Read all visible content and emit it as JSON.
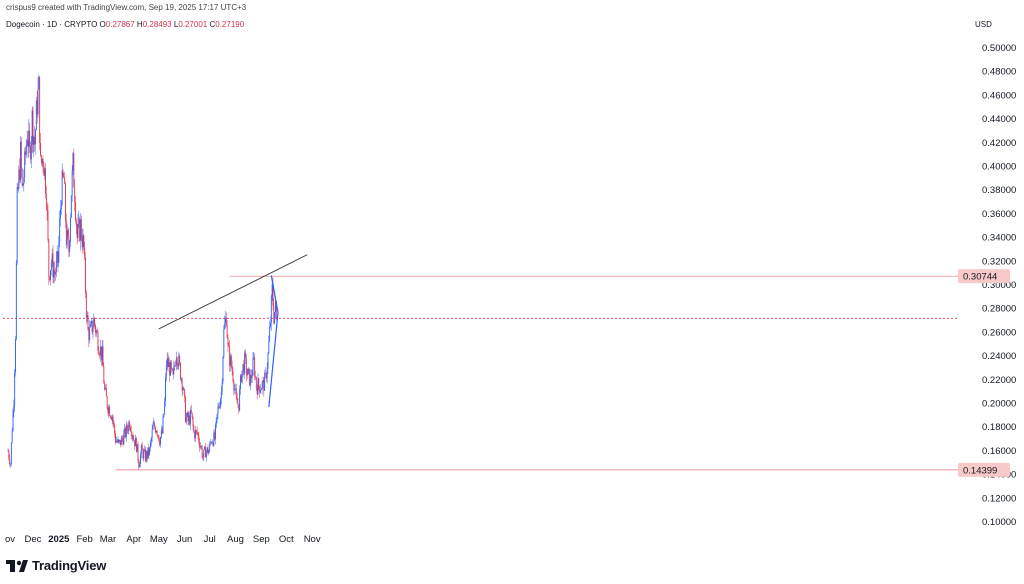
{
  "header": {
    "credit": "crispus9 created with TradingView.com, Sep 19, 2025 17:17 UTC+3",
    "symbol": "Dogecoin · 1D · CRYPTO",
    "ohlc": {
      "open_label": "O",
      "open": "0.27867",
      "high_label": "H",
      "high": "0.28493",
      "low_label": "L",
      "low": "0.27001",
      "close_label": "C",
      "close": "0.27190"
    }
  },
  "currency": "USD",
  "logo": {
    "text": "TradingView",
    "icon": "tradingview-logo-icon"
  },
  "colors": {
    "up": "#2962ff",
    "down": "#e0354b",
    "trendline": "#2b2b2b",
    "triangle": "#2962ff",
    "price_line": "#e0354b",
    "badge": "#f8c9c9"
  },
  "chart_data": {
    "type": "candlestick",
    "title": "Dogecoin · 1D · CRYPTO",
    "ylabel": "USD",
    "ylim": [
      0.09,
      0.51
    ],
    "y_ticks": [
      "0.50000",
      "0.48000",
      "0.46000",
      "0.44000",
      "0.42000",
      "0.40000",
      "0.38000",
      "0.36000",
      "0.34000",
      "0.32000",
      "0.30000",
      "0.28000",
      "0.26000",
      "0.24000",
      "0.22000",
      "0.20000",
      "0.18000",
      "0.16000",
      "0.14000",
      "0.12000",
      "0.10000"
    ],
    "x_ticks": [
      "ov",
      "Dec",
      "2025",
      "Feb",
      "Mar",
      "Apr",
      "May",
      "Jun",
      "Jul",
      "Aug",
      "Sep",
      "Oct",
      "Nov"
    ],
    "price_labels": [
      "0.30744",
      "0.14399"
    ],
    "current_price": 0.2719,
    "annotations": {
      "rising_trendline": [
        {
          "date": "2025-05-01",
          "price": 0.263
        },
        {
          "date": "2025-10-26",
          "price": 0.3255
        }
      ],
      "resistance_level": 0.30744,
      "support_level": 0.14399,
      "symmetrical_triangle": {
        "apex": {
          "date": "2025-09-21",
          "price": 0.2768
        },
        "upper": {
          "date": "2025-09-13",
          "price": 0.308
        },
        "lower": {
          "date": "2025-09-10",
          "price": 0.197
        }
      }
    },
    "path": [
      [
        "2024-11-01",
        0.16
      ],
      [
        "2024-11-04",
        0.15
      ],
      [
        "2024-11-06",
        0.18
      ],
      [
        "2024-11-08",
        0.205
      ],
      [
        "2024-11-10",
        0.26
      ],
      [
        "2024-11-12",
        0.37
      ],
      [
        "2024-11-14",
        0.39
      ],
      [
        "2024-11-16",
        0.41
      ],
      [
        "2024-11-18",
        0.38
      ],
      [
        "2024-11-21",
        0.4
      ],
      [
        "2024-11-24",
        0.43
      ],
      [
        "2024-11-27",
        0.41
      ],
      [
        "2024-11-30",
        0.44
      ],
      [
        "2024-12-03",
        0.42
      ],
      [
        "2024-12-06",
        0.455
      ],
      [
        "2024-12-08",
        0.465
      ],
      [
        "2024-12-10",
        0.4
      ],
      [
        "2024-12-13",
        0.41
      ],
      [
        "2024-12-17",
        0.38
      ],
      [
        "2024-12-20",
        0.31
      ],
      [
        "2024-12-23",
        0.32
      ],
      [
        "2024-12-27",
        0.31
      ],
      [
        "2024-12-31",
        0.32
      ],
      [
        "2025-01-04",
        0.38
      ],
      [
        "2025-01-07",
        0.39
      ],
      [
        "2025-01-10",
        0.34
      ],
      [
        "2025-01-13",
        0.33
      ],
      [
        "2025-01-16",
        0.38
      ],
      [
        "2025-01-18",
        0.4
      ],
      [
        "2025-01-20",
        0.38
      ],
      [
        "2025-01-23",
        0.34
      ],
      [
        "2025-01-27",
        0.35
      ],
      [
        "2025-01-31",
        0.33
      ],
      [
        "2025-02-03",
        0.28
      ],
      [
        "2025-02-05",
        0.26
      ],
      [
        "2025-02-08",
        0.26
      ],
      [
        "2025-02-12",
        0.27
      ],
      [
        "2025-02-15",
        0.26
      ],
      [
        "2025-02-18",
        0.25
      ],
      [
        "2025-02-22",
        0.24
      ],
      [
        "2025-02-25",
        0.21
      ],
      [
        "2025-02-28",
        0.2
      ],
      [
        "2025-03-03",
        0.195
      ],
      [
        "2025-03-06",
        0.19
      ],
      [
        "2025-03-10",
        0.17
      ],
      [
        "2025-03-14",
        0.165
      ],
      [
        "2025-03-18",
        0.17
      ],
      [
        "2025-03-22",
        0.175
      ],
      [
        "2025-03-27",
        0.185
      ],
      [
        "2025-04-01",
        0.17
      ],
      [
        "2025-04-04",
        0.165
      ],
      [
        "2025-04-07",
        0.15
      ],
      [
        "2025-04-10",
        0.16
      ],
      [
        "2025-04-15",
        0.155
      ],
      [
        "2025-04-20",
        0.16
      ],
      [
        "2025-04-24",
        0.18
      ],
      [
        "2025-04-28",
        0.18
      ],
      [
        "2025-05-02",
        0.17
      ],
      [
        "2025-05-05",
        0.175
      ],
      [
        "2025-05-08",
        0.2
      ],
      [
        "2025-05-10",
        0.235
      ],
      [
        "2025-05-14",
        0.23
      ],
      [
        "2025-05-18",
        0.22
      ],
      [
        "2025-05-22",
        0.245
      ],
      [
        "2025-05-26",
        0.23
      ],
      [
        "2025-05-30",
        0.215
      ],
      [
        "2025-06-02",
        0.19
      ],
      [
        "2025-06-05",
        0.185
      ],
      [
        "2025-06-09",
        0.19
      ],
      [
        "2025-06-12",
        0.175
      ],
      [
        "2025-06-16",
        0.175
      ],
      [
        "2025-06-20",
        0.165
      ],
      [
        "2025-06-23",
        0.155
      ],
      [
        "2025-06-26",
        0.16
      ],
      [
        "2025-06-30",
        0.16
      ],
      [
        "2025-07-03",
        0.17
      ],
      [
        "2025-07-07",
        0.17
      ],
      [
        "2025-07-11",
        0.195
      ],
      [
        "2025-07-15",
        0.21
      ],
      [
        "2025-07-18",
        0.26
      ],
      [
        "2025-07-21",
        0.275
      ],
      [
        "2025-07-23",
        0.245
      ],
      [
        "2025-07-26",
        0.235
      ],
      [
        "2025-07-29",
        0.225
      ],
      [
        "2025-08-02",
        0.2
      ],
      [
        "2025-08-05",
        0.2
      ],
      [
        "2025-08-08",
        0.225
      ],
      [
        "2025-08-12",
        0.235
      ],
      [
        "2025-08-15",
        0.225
      ],
      [
        "2025-08-19",
        0.22
      ],
      [
        "2025-08-23",
        0.235
      ],
      [
        "2025-08-26",
        0.215
      ],
      [
        "2025-08-30",
        0.215
      ],
      [
        "2025-09-03",
        0.215
      ],
      [
        "2025-09-06",
        0.22
      ],
      [
        "2025-09-09",
        0.24
      ],
      [
        "2025-09-12",
        0.27
      ],
      [
        "2025-09-14",
        0.295
      ],
      [
        "2025-09-16",
        0.275
      ],
      [
        "2025-09-18",
        0.28
      ],
      [
        "2025-09-19",
        0.2719
      ]
    ]
  }
}
